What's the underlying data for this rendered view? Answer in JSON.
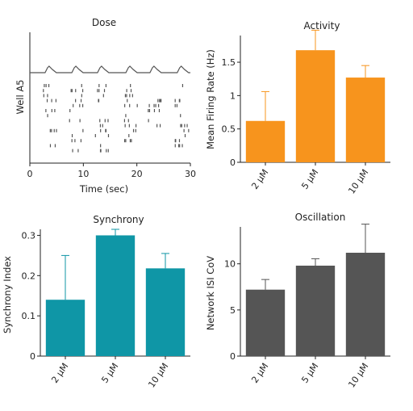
{
  "chart_data": [
    {
      "type": "raster",
      "title": "Dose",
      "xlabel": "Time (sec)",
      "ylabel": "Well A5",
      "xlim": [
        0,
        30
      ],
      "x_ticks": [
        "0",
        "10",
        "20",
        "30"
      ],
      "burst_times_sec": [
        3.6,
        8.6,
        13.4,
        18.7,
        23.2,
        28.3
      ],
      "spike_rows": 14,
      "color": "#555555"
    },
    {
      "type": "bar",
      "title": "Activity",
      "xlabel": "",
      "ylabel": "Mean Firing Rate (Hz)",
      "categories": [
        "2 μM",
        "5 μM",
        "10 μM"
      ],
      "values": [
        0.62,
        1.68,
        1.27
      ],
      "errors": [
        0.44,
        0.3,
        0.18
      ],
      "ylim": [
        0,
        1.9
      ],
      "y_ticks": [
        "0",
        "0.5",
        "1",
        "1.5"
      ],
      "y_tick_values": [
        0,
        0.5,
        1,
        1.5
      ],
      "color": "#f7941d"
    },
    {
      "type": "bar",
      "title": "Synchrony",
      "xlabel": "",
      "ylabel": "Synchrony Index",
      "categories": [
        "2 μM",
        "5 μM",
        "10 μM"
      ],
      "values": [
        0.14,
        0.3,
        0.218
      ],
      "errors": [
        0.11,
        0.015,
        0.037
      ],
      "ylim": [
        0,
        0.315
      ],
      "y_ticks": [
        "0",
        "0.1",
        "0.2",
        "0.3"
      ],
      "y_tick_values": [
        0,
        0.1,
        0.2,
        0.3
      ],
      "color": "#0f96a6"
    },
    {
      "type": "bar",
      "title": "Oscillation",
      "xlabel": "",
      "ylabel": "Network ISI CoV",
      "categories": [
        "2 μM",
        "5 μM",
        "10 μM"
      ],
      "values": [
        7.2,
        9.8,
        11.2
      ],
      "errors": [
        1.1,
        0.75,
        3.1
      ],
      "ylim": [
        0,
        14
      ],
      "y_ticks": [
        "0",
        "5",
        "10"
      ],
      "y_tick_values": [
        0,
        5,
        10
      ],
      "color": "#555555"
    }
  ]
}
